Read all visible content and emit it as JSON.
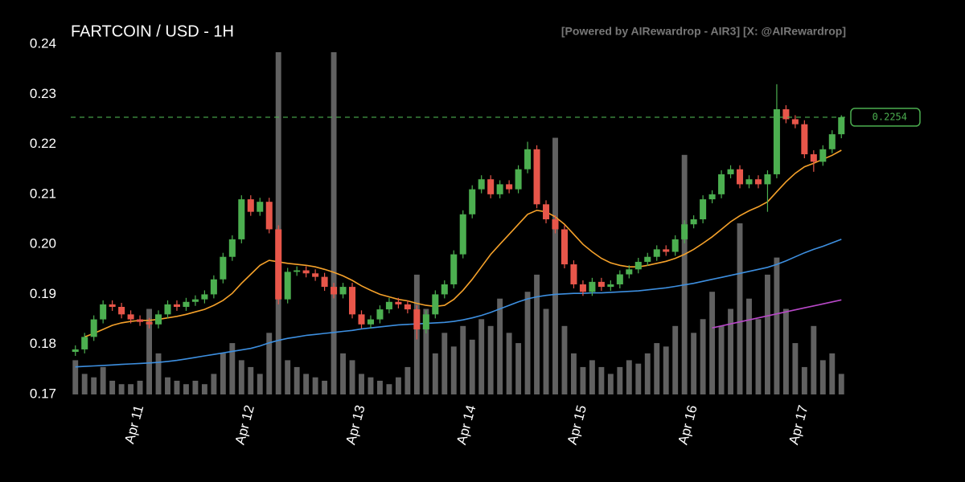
{
  "chart_data": {
    "type": "candlestick",
    "title": "FARTCOIN / USD - 1H",
    "subtitle": "[Powered by AIRewardrop - AIR3] [X: @AIRewardrop]",
    "categories": [
      null,
      null,
      null,
      null,
      null,
      null,
      null,
      "Apr 11",
      null,
      null,
      null,
      null,
      null,
      null,
      null,
      null,
      null,
      null,
      null,
      "Apr 12",
      null,
      null,
      null,
      null,
      null,
      null,
      null,
      null,
      null,
      null,
      null,
      "Apr 13",
      null,
      null,
      null,
      null,
      null,
      null,
      null,
      null,
      null,
      null,
      null,
      "Apr 14",
      null,
      null,
      null,
      null,
      null,
      null,
      null,
      null,
      null,
      null,
      null,
      "Apr 15",
      null,
      null,
      null,
      null,
      null,
      null,
      null,
      null,
      null,
      null,
      null,
      "Apr 16",
      null,
      null,
      null,
      null,
      null,
      null,
      null,
      null,
      null,
      null,
      null,
      "Apr 17",
      null,
      null,
      null,
      null
    ],
    "open": [
      0.1785,
      0.179,
      0.1815,
      0.185,
      0.188,
      0.1875,
      0.186,
      0.185,
      0.1845,
      0.184,
      0.186,
      0.188,
      0.1875,
      0.1885,
      0.189,
      0.19,
      0.193,
      0.1975,
      0.201,
      0.209,
      0.2065,
      0.2085,
      0.203,
      0.189,
      0.1945,
      0.1948,
      0.1942,
      0.1935,
      0.1915,
      0.19,
      0.1915,
      0.186,
      0.184,
      0.185,
      0.187,
      0.1885,
      0.188,
      0.187,
      0.183,
      0.186,
      0.19,
      0.192,
      0.198,
      0.206,
      0.211,
      0.213,
      0.21,
      0.212,
      0.211,
      0.215,
      0.219,
      0.208,
      0.205,
      0.203,
      0.196,
      0.192,
      0.1905,
      0.1925,
      0.1915,
      0.192,
      0.194,
      0.195,
      0.1965,
      0.1975,
      0.199,
      0.1985,
      0.201,
      0.204,
      0.205,
      0.209,
      0.21,
      0.214,
      0.215,
      0.212,
      0.213,
      0.212,
      0.214,
      0.227,
      0.225,
      0.224,
      0.218,
      0.2165,
      0.219,
      0.222
    ],
    "high": [
      0.1798,
      0.1823,
      0.1858,
      0.1888,
      0.1888,
      0.1883,
      0.1868,
      0.1858,
      0.1853,
      0.1868,
      0.1888,
      0.1888,
      0.1893,
      0.1898,
      0.1908,
      0.1938,
      0.1983,
      0.2018,
      0.2098,
      0.2098,
      0.2093,
      0.2093,
      0.2038,
      0.1953,
      0.1956,
      0.1956,
      0.195,
      0.1943,
      0.1923,
      0.1923,
      0.1923,
      0.1868,
      0.1858,
      0.1878,
      0.1893,
      0.1893,
      0.1888,
      0.1878,
      0.1868,
      0.1908,
      0.1928,
      0.1988,
      0.2068,
      0.2118,
      0.2138,
      0.2138,
      0.2128,
      0.2128,
      0.2158,
      0.2205,
      0.2198,
      0.2088,
      0.2058,
      0.2038,
      0.1968,
      0.1928,
      0.1933,
      0.1933,
      0.1928,
      0.1948,
      0.1958,
      0.1973,
      0.1983,
      0.1998,
      0.1998,
      0.2018,
      0.2048,
      0.2058,
      0.2098,
      0.2108,
      0.2148,
      0.2158,
      0.2158,
      0.2138,
      0.2138,
      0.2148,
      0.232,
      0.2278,
      0.2258,
      0.2248,
      0.2188,
      0.2198,
      0.2228,
      0.2258
    ],
    "low": [
      0.1777,
      0.1782,
      0.1807,
      0.1842,
      0.1867,
      0.1852,
      0.1842,
      0.1837,
      0.1832,
      0.1832,
      0.1852,
      0.1867,
      0.1867,
      0.1877,
      0.1882,
      0.1892,
      0.1922,
      0.1967,
      0.2002,
      0.2057,
      0.2057,
      0.2022,
      0.188,
      0.1882,
      0.1937,
      0.1934,
      0.1927,
      0.1907,
      0.1892,
      0.1892,
      0.1852,
      0.1832,
      0.1832,
      0.1842,
      0.1862,
      0.1872,
      0.1862,
      0.181,
      0.1822,
      0.1852,
      0.1892,
      0.1912,
      0.1972,
      0.2052,
      0.2102,
      0.2092,
      0.2092,
      0.2102,
      0.2102,
      0.2142,
      0.2072,
      0.2042,
      0.2022,
      0.1952,
      0.1912,
      0.1897,
      0.1897,
      0.1907,
      0.1907,
      0.1912,
      0.1932,
      0.1942,
      0.1957,
      0.1967,
      0.1977,
      0.1977,
      0.2002,
      0.2032,
      0.2042,
      0.2082,
      0.2092,
      0.2132,
      0.2112,
      0.2112,
      0.2112,
      0.2065,
      0.2132,
      0.2242,
      0.2232,
      0.2172,
      0.2145,
      0.2157,
      0.2182,
      0.2212
    ],
    "close": [
      0.179,
      0.1815,
      0.185,
      0.188,
      0.1875,
      0.186,
      0.185,
      0.1845,
      0.184,
      0.186,
      0.188,
      0.1875,
      0.1885,
      0.189,
      0.19,
      0.193,
      0.1975,
      0.201,
      0.209,
      0.2065,
      0.2085,
      0.203,
      0.189,
      0.1945,
      0.1948,
      0.1942,
      0.1935,
      0.1915,
      0.19,
      0.1915,
      0.186,
      0.184,
      0.185,
      0.187,
      0.1885,
      0.188,
      0.187,
      0.183,
      0.186,
      0.19,
      0.192,
      0.198,
      0.206,
      0.211,
      0.213,
      0.21,
      0.212,
      0.211,
      0.215,
      0.219,
      0.208,
      0.205,
      0.203,
      0.196,
      0.192,
      0.1905,
      0.1925,
      0.1915,
      0.192,
      0.194,
      0.195,
      0.1965,
      0.1975,
      0.199,
      0.1985,
      0.201,
      0.204,
      0.205,
      0.209,
      0.21,
      0.214,
      0.215,
      0.212,
      0.213,
      0.212,
      0.214,
      0.227,
      0.225,
      0.224,
      0.218,
      0.2165,
      0.219,
      0.222,
      0.2254
    ],
    "volume": [
      10,
      6,
      5,
      8,
      4,
      3,
      3,
      4,
      25,
      12,
      5,
      4,
      3,
      4,
      3,
      6,
      12,
      15,
      10,
      8,
      6,
      18,
      100,
      10,
      8,
      6,
      5,
      4,
      100,
      12,
      10,
      6,
      5,
      4,
      3,
      5,
      8,
      35,
      25,
      12,
      18,
      14,
      20,
      16,
      22,
      20,
      28,
      18,
      15,
      30,
      35,
      25,
      75,
      20,
      12,
      8,
      10,
      8,
      6,
      8,
      10,
      9,
      12,
      15,
      14,
      20,
      70,
      18,
      22,
      30,
      20,
      25,
      50,
      28,
      22,
      35,
      40,
      25,
      15,
      8,
      20,
      10,
      12,
      6
    ],
    "up_color": "#4caf50",
    "down_color": "#e8564a",
    "volume_color": "#8a8a8a",
    "series": [
      {
        "color": "#f5a12a",
        "values": [
          null,
          0.1815,
          0.1822,
          0.183,
          0.1838,
          0.1843,
          0.1846,
          0.1848,
          0.1848,
          0.185,
          0.1853,
          0.1856,
          0.186,
          0.1865,
          0.187,
          0.1878,
          0.1888,
          0.1902,
          0.1922,
          0.194,
          0.1958,
          0.1968,
          0.1965,
          0.1962,
          0.196,
          0.1958,
          0.1955,
          0.195,
          0.1944,
          0.1937,
          0.1928,
          0.1917,
          0.1908,
          0.19,
          0.1895,
          0.189,
          0.1887,
          0.1882,
          0.1878,
          0.1876,
          0.1878,
          0.189,
          0.1908,
          0.193,
          0.1955,
          0.198,
          0.2,
          0.202,
          0.204,
          0.206,
          0.2068,
          0.2065,
          0.2055,
          0.204,
          0.202,
          0.2,
          0.1985,
          0.1972,
          0.1963,
          0.1958,
          0.1955,
          0.1955,
          0.1958,
          0.1962,
          0.1966,
          0.1972,
          0.198,
          0.199,
          0.2002,
          0.2015,
          0.203,
          0.2045,
          0.2057,
          0.2067,
          0.2075,
          0.2085,
          0.2105,
          0.2125,
          0.2142,
          0.2155,
          0.2162,
          0.217,
          0.2178,
          0.2188
        ]
      },
      {
        "color": "#3d8fe0",
        "values": [
          0.1755,
          0.1756,
          0.1757,
          0.1758,
          0.1759,
          0.176,
          0.1761,
          0.1762,
          0.1763,
          0.1764,
          0.1766,
          0.1768,
          0.1771,
          0.1774,
          0.1777,
          0.178,
          0.1783,
          0.1786,
          0.1789,
          0.1792,
          0.1797,
          0.1803,
          0.1808,
          0.1812,
          0.1815,
          0.1818,
          0.182,
          0.1822,
          0.1824,
          0.1826,
          0.1828,
          0.1831,
          0.1833,
          0.1835,
          0.1837,
          0.1839,
          0.184,
          0.1841,
          0.1842,
          0.1843,
          0.1844,
          0.1846,
          0.1849,
          0.1853,
          0.1858,
          0.1864,
          0.1871,
          0.1878,
          0.1885,
          0.1891,
          0.1895,
          0.1898,
          0.19,
          0.1901,
          0.1902,
          0.1902,
          0.1903,
          0.1903,
          0.1904,
          0.1905,
          0.1906,
          0.1907,
          0.1909,
          0.1911,
          0.1913,
          0.1916,
          0.1919,
          0.1922,
          0.1926,
          0.193,
          0.1934,
          0.1938,
          0.1942,
          0.1946,
          0.195,
          0.1954,
          0.196,
          0.1967,
          0.1975,
          0.1983,
          0.199,
          0.1996,
          0.2003,
          0.201
        ]
      },
      {
        "color": "#b848c8",
        "values": [
          null,
          null,
          null,
          null,
          null,
          null,
          null,
          null,
          null,
          null,
          null,
          null,
          null,
          null,
          null,
          null,
          null,
          null,
          null,
          null,
          null,
          null,
          null,
          null,
          null,
          null,
          null,
          null,
          null,
          null,
          null,
          null,
          null,
          null,
          null,
          null,
          null,
          null,
          null,
          null,
          null,
          null,
          null,
          null,
          null,
          null,
          null,
          null,
          null,
          null,
          null,
          null,
          null,
          null,
          null,
          null,
          null,
          null,
          null,
          null,
          null,
          null,
          null,
          null,
          null,
          null,
          null,
          null,
          null,
          0.1833,
          0.1837,
          0.1841,
          0.1845,
          0.1849,
          0.1853,
          0.1857,
          0.1861,
          0.1865,
          0.1869,
          0.1873,
          0.1877,
          0.1881,
          0.1885,
          0.1889
        ]
      }
    ],
    "price_line": {
      "value": 0.2254,
      "label": "0.2254",
      "color": "#4caf50"
    },
    "ylim": [
      0.17,
      0.24
    ],
    "yticks": [
      0.17,
      0.18,
      0.19,
      {
        "value": 0.2,
        "label": "0.20"
      },
      0.21,
      0.22,
      0.23,
      0.24
    ]
  }
}
